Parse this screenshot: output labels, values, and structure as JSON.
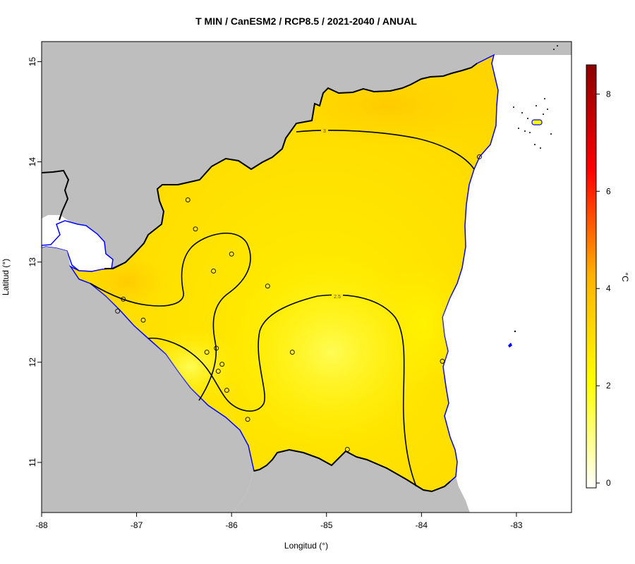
{
  "title": "T MIN / CanESM2 / RCP8.5 / 2021-2040 / ANUAL",
  "x_axis": {
    "label": "Longitud (°)",
    "ticks": [
      {
        "value": -88,
        "label": "-88"
      },
      {
        "value": -87,
        "label": "-87"
      },
      {
        "value": -86,
        "label": "-86"
      },
      {
        "value": -85,
        "label": "-85"
      },
      {
        "value": -84,
        "label": "-84"
      },
      {
        "value": -83,
        "label": "-83"
      }
    ]
  },
  "y_axis": {
    "label": "Latitud (°)",
    "ticks": [
      {
        "value": 11,
        "label": "11"
      },
      {
        "value": 12,
        "label": "12"
      },
      {
        "value": 13,
        "label": "13"
      },
      {
        "value": 14,
        "label": "14"
      },
      {
        "value": 15,
        "label": "15"
      }
    ]
  },
  "colorbar": {
    "unit": "°C",
    "min": -0.1,
    "max": 8.6,
    "ticks": [
      {
        "value": 0,
        "label": "0"
      },
      {
        "value": 2,
        "label": "2"
      },
      {
        "value": 4,
        "label": "4"
      },
      {
        "value": 6,
        "label": "6"
      },
      {
        "value": 8,
        "label": "8"
      }
    ],
    "colors": [
      "#ffffff",
      "#ffff00",
      "#ffb300",
      "#ff0000",
      "#8b0000"
    ]
  },
  "contours": [
    {
      "value": 3,
      "label": "3"
    },
    {
      "value": 2.5,
      "label": "2.5"
    }
  ],
  "stations": [
    [
      -86.46,
      13.62
    ],
    [
      -86.38,
      13.33
    ],
    [
      -86.0,
      13.08
    ],
    [
      -86.19,
      12.91
    ],
    [
      -85.62,
      12.76
    ],
    [
      -87.14,
      12.63
    ],
    [
      -86.93,
      12.42
    ],
    [
      -87.2,
      12.51
    ],
    [
      -86.26,
      12.1
    ],
    [
      -86.16,
      12.14
    ],
    [
      -86.1,
      11.98
    ],
    [
      -86.14,
      11.91
    ],
    [
      -86.05,
      11.72
    ],
    [
      -85.83,
      11.43
    ],
    [
      -85.36,
      12.1
    ],
    [
      -84.78,
      11.13
    ],
    [
      -83.78,
      12.01
    ],
    [
      -83.39,
      14.05
    ]
  ],
  "colors": {
    "land_outside": "#bebebe",
    "coastline": "#0000ff",
    "border": "#000000"
  }
}
